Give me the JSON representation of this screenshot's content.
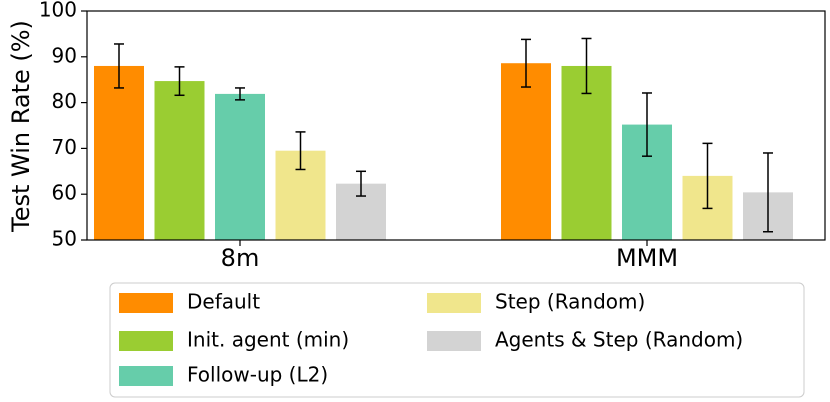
{
  "chart_data": {
    "type": "bar",
    "title": "",
    "xlabel": "",
    "ylabel": "Test Win Rate (%)",
    "ylim": [
      50,
      100
    ],
    "yticks": [
      "50",
      "60",
      "70",
      "80",
      "90",
      "100"
    ],
    "categories": [
      "8m",
      "MMM"
    ],
    "series": [
      {
        "name": "Default",
        "color": "#ff8c00",
        "values": [
          88.0,
          88.6
        ],
        "errors": [
          4.8,
          5.2
        ]
      },
      {
        "name": "Init. agent (min)",
        "color": "#9acd32",
        "values": [
          84.7,
          88.0
        ],
        "errors": [
          3.1,
          6.0
        ]
      },
      {
        "name": "Follow-up (L2)",
        "color": "#66cdaa",
        "values": [
          81.9,
          75.2
        ],
        "errors": [
          1.3,
          6.9
        ]
      },
      {
        "name": "Step (Random)",
        "color": "#f0e68c",
        "values": [
          69.5,
          64.0
        ],
        "errors": [
          4.1,
          7.1
        ]
      },
      {
        "name": "Agents & Step (Random)",
        "color": "#d3d3d3",
        "values": [
          62.3,
          60.4
        ],
        "errors": [
          2.7,
          8.6
        ]
      }
    ],
    "legend": "bottom, two columns"
  }
}
